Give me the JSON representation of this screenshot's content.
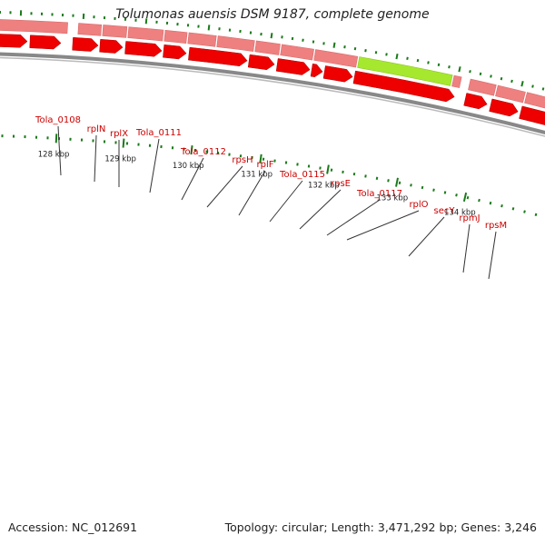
{
  "title": "Tolumonas auensis DSM 9187, complete genome",
  "footer": {
    "accession": "Accession: NC_012691",
    "topology": "Topology: circular; Length: 3,471,292 bp; Genes: 3,246"
  },
  "colors": {
    "gene_feature": "#ef8080",
    "gene_highlight": "#a6e82e",
    "cds_arrow": "#ee0000",
    "backbone": "#888888",
    "tick": "#1a7a1a",
    "label": "#cc0000"
  },
  "scale_labels": [
    "128 kbp",
    "129 kbp",
    "130 kbp",
    "131 kbp",
    "132 kbp",
    "133 kbp",
    "134 kbp"
  ],
  "gene_labels": [
    "Tola_0108",
    "rplN",
    "rplX",
    "Tola_0111",
    "Tola_0112",
    "rpsH",
    "rplF",
    "Tola_0115",
    "rpsE",
    "Tola_0117",
    "rplO",
    "secY",
    "rpmJ",
    "rpsM"
  ],
  "highlighted_gene": "secY"
}
